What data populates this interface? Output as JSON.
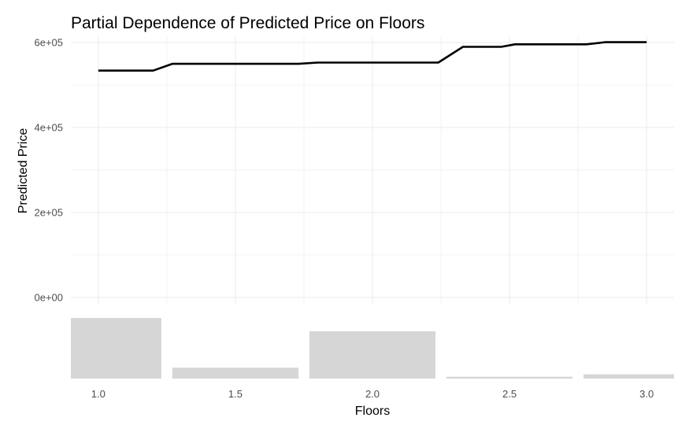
{
  "chart_data": {
    "type": "line",
    "title": "Partial Dependence of Predicted Price on Floors",
    "xlabel": "Floors",
    "ylabel": "Predicted Price",
    "xlim": [
      0.9,
      3.1
    ],
    "ylim": [
      -15000,
      615000
    ],
    "grid": true,
    "x_ticks": [
      "1.0",
      "1.5",
      "2.0",
      "2.5",
      "3.0"
    ],
    "x_tick_values": [
      1.0,
      1.5,
      2.0,
      2.5,
      3.0
    ],
    "y_ticks": [
      "0e+00",
      "2e+05",
      "4e+05",
      "6e+05"
    ],
    "y_tick_values": [
      0,
      200000,
      400000,
      600000
    ],
    "series": [
      {
        "x": [
          1.0,
          1.2,
          1.27,
          1.73,
          1.8,
          2.24,
          2.33,
          2.47,
          2.52,
          2.78,
          2.85,
          3.0
        ],
        "y": [
          534000,
          534000,
          550000,
          550000,
          553000,
          553000,
          590000,
          590000,
          596000,
          596000,
          601000,
          601000
        ]
      }
    ],
    "distribution": {
      "type": "histogram",
      "bins": [
        {
          "x_min": 0.9,
          "x_max": 1.23,
          "relative_height": 1.0
        },
        {
          "x_min": 1.27,
          "x_max": 1.73,
          "relative_height": 0.18
        },
        {
          "x_min": 1.77,
          "x_max": 2.23,
          "relative_height": 0.78
        },
        {
          "x_min": 2.27,
          "x_max": 2.73,
          "relative_height": 0.03
        },
        {
          "x_min": 2.77,
          "x_max": 3.1,
          "relative_height": 0.07
        }
      ]
    }
  }
}
